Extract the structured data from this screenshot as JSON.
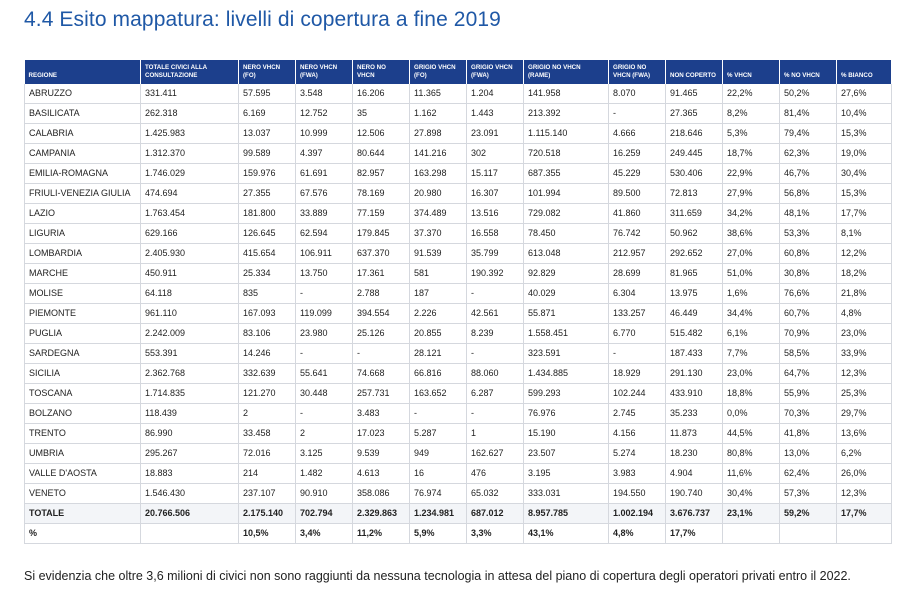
{
  "title": "4.4 Esito mappatura: livelli di copertura a fine 2019",
  "columns": [
    "REGIONE",
    "TOTALE CIVICI ALLA CONSULTAZIONE",
    "NERO VHCN (FO)",
    "NERO VHCN (FWA)",
    "NERO NO VHCN",
    "GRIGIO VHCN (FO)",
    "GRIGIO VHCN (FWA)",
    "GRIGIO NO VHCN (RAME)",
    "GRIGIO NO VHCN (FWA)",
    "NON COPERTO",
    "% VHCN",
    "% NO VHCN",
    "% BIANCO"
  ],
  "rows": [
    [
      "ABRUZZO",
      "331.411",
      "57.595",
      "3.548",
      "16.206",
      "11.365",
      "1.204",
      "141.958",
      "8.070",
      "91.465",
      "22,2%",
      "50,2%",
      "27,6%"
    ],
    [
      "BASILICATA",
      "262.318",
      "6.169",
      "12.752",
      "35",
      "1.162",
      "1.443",
      "213.392",
      "-",
      "27.365",
      "8,2%",
      "81,4%",
      "10,4%"
    ],
    [
      "CALABRIA",
      "1.425.983",
      "13.037",
      "10.999",
      "12.506",
      "27.898",
      "23.091",
      "1.115.140",
      "4.666",
      "218.646",
      "5,3%",
      "79,4%",
      "15,3%"
    ],
    [
      "CAMPANIA",
      "1.312.370",
      "99.589",
      "4.397",
      "80.644",
      "141.216",
      "302",
      "720.518",
      "16.259",
      "249.445",
      "18,7%",
      "62,3%",
      "19,0%"
    ],
    [
      "EMILIA-ROMAGNA",
      "1.746.029",
      "159.976",
      "61.691",
      "82.957",
      "163.298",
      "15.117",
      "687.355",
      "45.229",
      "530.406",
      "22,9%",
      "46,7%",
      "30,4%"
    ],
    [
      "FRIULI-VENEZIA GIULIA",
      "474.694",
      "27.355",
      "67.576",
      "78.169",
      "20.980",
      "16.307",
      "101.994",
      "89.500",
      "72.813",
      "27,9%",
      "56,8%",
      "15,3%"
    ],
    [
      "LAZIO",
      "1.763.454",
      "181.800",
      "33.889",
      "77.159",
      "374.489",
      "13.516",
      "729.082",
      "41.860",
      "311.659",
      "34,2%",
      "48,1%",
      "17,7%"
    ],
    [
      "LIGURIA",
      "629.166",
      "126.645",
      "62.594",
      "179.845",
      "37.370",
      "16.558",
      "78.450",
      "76.742",
      "50.962",
      "38,6%",
      "53,3%",
      "8,1%"
    ],
    [
      "LOMBARDIA",
      "2.405.930",
      "415.654",
      "106.911",
      "637.370",
      "91.539",
      "35.799",
      "613.048",
      "212.957",
      "292.652",
      "27,0%",
      "60,8%",
      "12,2%"
    ],
    [
      "MARCHE",
      "450.911",
      "25.334",
      "13.750",
      "17.361",
      "581",
      "190.392",
      "92.829",
      "28.699",
      "81.965",
      "51,0%",
      "30,8%",
      "18,2%"
    ],
    [
      "MOLISE",
      "64.118",
      "835",
      "-",
      "2.788",
      "187",
      "-",
      "40.029",
      "6.304",
      "13.975",
      "1,6%",
      "76,6%",
      "21,8%"
    ],
    [
      "PIEMONTE",
      "961.110",
      "167.093",
      "119.099",
      "394.554",
      "2.226",
      "42.561",
      "55.871",
      "133.257",
      "46.449",
      "34,4%",
      "60,7%",
      "4,8%"
    ],
    [
      "PUGLIA",
      "2.242.009",
      "83.106",
      "23.980",
      "25.126",
      "20.855",
      "8.239",
      "1.558.451",
      "6.770",
      "515.482",
      "6,1%",
      "70,9%",
      "23,0%"
    ],
    [
      "SARDEGNA",
      "553.391",
      "14.246",
      "-",
      "-",
      "28.121",
      "-",
      "323.591",
      "-",
      "187.433",
      "7,7%",
      "58,5%",
      "33,9%"
    ],
    [
      "SICILIA",
      "2.362.768",
      "332.639",
      "55.641",
      "74.668",
      "66.816",
      "88.060",
      "1.434.885",
      "18.929",
      "291.130",
      "23,0%",
      "64,7%",
      "12,3%"
    ],
    [
      "TOSCANA",
      "1.714.835",
      "121.270",
      "30.448",
      "257.731",
      "163.652",
      "6.287",
      "599.293",
      "102.244",
      "433.910",
      "18,8%",
      "55,9%",
      "25,3%"
    ],
    [
      "BOLZANO",
      "118.439",
      "2",
      "-",
      "3.483",
      "-",
      "-",
      "76.976",
      "2.745",
      "35.233",
      "0,0%",
      "70,3%",
      "29,7%"
    ],
    [
      "TRENTO",
      "86.990",
      "33.458",
      "2",
      "17.023",
      "5.287",
      "1",
      "15.190",
      "4.156",
      "11.873",
      "44,5%",
      "41,8%",
      "13,6%"
    ],
    [
      "UMBRIA",
      "295.267",
      "72.016",
      "3.125",
      "9.539",
      "949",
      "162.627",
      "23.507",
      "5.274",
      "18.230",
      "80,8%",
      "13,0%",
      "6,2%"
    ],
    [
      "VALLE D'AOSTA",
      "18.883",
      "214",
      "1.482",
      "4.613",
      "16",
      "476",
      "3.195",
      "3.983",
      "4.904",
      "11,6%",
      "62,4%",
      "26,0%"
    ],
    [
      "VENETO",
      "1.546.430",
      "237.107",
      "90.910",
      "358.086",
      "76.974",
      "65.032",
      "333.031",
      "194.550",
      "190.740",
      "30,4%",
      "57,3%",
      "12,3%"
    ]
  ],
  "total_row": [
    "TOTALE",
    "20.766.506",
    "2.175.140",
    "702.794",
    "2.329.863",
    "1.234.981",
    "687.012",
    "8.957.785",
    "1.002.194",
    "3.676.737",
    "23,1%",
    "59,2%",
    "17,7%"
  ],
  "percent_row": [
    "%",
    "",
    "10,5%",
    "3,4%",
    "11,2%",
    "5,9%",
    "3,3%",
    "43,1%",
    "4,8%",
    "17,7%",
    "",
    "",
    ""
  ],
  "footnote": "Si evidenzia che oltre 3,6 milioni di civici non sono raggiunti da nessuna tecnologia in attesa del piano di copertura degli operatori privati entro il 2022."
}
